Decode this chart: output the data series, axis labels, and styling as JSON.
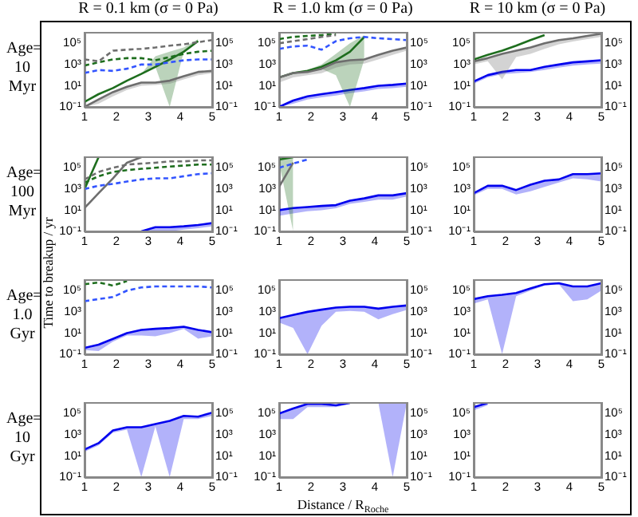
{
  "chart_data": [
    {
      "type": "line",
      "title": "R = 0.1 km (σ = 0 Pa)",
      "annotations": [
        "Age= 10 Myr"
      ],
      "x": [
        1,
        1.44,
        1.89,
        2.33,
        2.78,
        3.22,
        3.67,
        4.11,
        4.56,
        5
      ],
      "xlim": [
        1,
        5
      ],
      "xticks": [
        1,
        2,
        3,
        4,
        5
      ],
      "ylim": [
        0.1,
        1000000.0
      ],
      "yticks": [
        {
          "value": 0.1,
          "label": "10⁻¹"
        },
        {
          "value": 10,
          "label": "10¹"
        },
        {
          "value": 1000,
          "label": "10³"
        },
        {
          "value": 100000,
          "label": "10⁵"
        }
      ],
      "log": true,
      "series": [
        {
          "color": "#6e6e6e",
          "line_style": "dashed",
          "values": [
            3000.0,
            2000.0,
            20000.0,
            25000.0,
            30000.0,
            40000.0,
            60000.0,
            80000.0,
            130000.0,
            200000.0
          ]
        },
        {
          "color": "#1e6e1e",
          "line_style": "dashed",
          "values": [
            800,
            1600.0,
            3000.0,
            4000.0,
            4000.0,
            2500.0,
            5000.0,
            10000.0,
            16000.0,
            20000.0
          ]
        },
        {
          "color": "#3355ff",
          "line_style": "dashed",
          "values": [
            160,
            300,
            250,
            400,
            1000.0,
            1000.0,
            1600.0,
            2500.0,
            3000.0,
            3000.0
          ]
        },
        {
          "color": "#6e6e6e",
          "values": [
            0.1,
            0.5,
            2.5,
            8,
            20,
            20,
            30,
            80,
            200,
            250
          ],
          "lower": [
            0.1,
            0.2,
            1,
            4,
            10,
            12,
            15,
            40,
            100,
            150
          ],
          "upper": [
            0.1,
            0.5,
            2.5,
            8,
            20,
            20,
            30,
            80,
            200,
            250
          ]
        },
        {
          "color": "#1e6e1e",
          "values": [
            0.3,
            1.6,
            6,
            30,
            130,
            600,
            3000,
            16000.0,
            160000.0,
            null
          ],
          "lower": [
            0.3,
            1.6,
            6,
            30,
            130,
            600,
            0.1,
            16000.0,
            160000.0,
            null
          ],
          "upper": [
            0.3,
            1.6,
            6,
            30,
            130,
            6000.0,
            16000.0,
            40000.0,
            250000.0,
            null
          ]
        }
      ]
    },
    {
      "type": "line",
      "title": "R = 1.0 km (σ = 0 Pa)",
      "x": [
        1,
        1.44,
        1.89,
        2.33,
        2.78,
        3.22,
        3.67,
        4.11,
        4.56,
        5
      ],
      "xlim": [
        1,
        5
      ],
      "xticks": [
        1,
        2,
        3,
        4,
        5
      ],
      "ylim": [
        0.1,
        1000000.0
      ],
      "yticks": [
        {
          "value": 0.1,
          "label": "10⁻¹"
        },
        {
          "value": 10,
          "label": "10¹"
        },
        {
          "value": 1000,
          "label": "10³"
        },
        {
          "value": 100000,
          "label": "10⁵"
        }
      ],
      "log": true,
      "series": [
        {
          "color": "#6e6e6e",
          "line_style": "dashed",
          "values": [
            100000.0,
            160000.0,
            250000.0,
            400000.0,
            600000.0,
            null,
            null,
            null,
            null,
            null
          ]
        },
        {
          "color": "#1e6e1e",
          "line_style": "dashed",
          "values": [
            250000.0,
            400000.0,
            500000.0,
            600000.0,
            800000.0,
            null,
            null,
            null,
            null,
            null
          ]
        },
        {
          "color": "#3355ff",
          "line_style": "dashed",
          "values": [
            30000.0,
            50000.0,
            60000.0,
            25000.0,
            160000.0,
            300000.0,
            400000.0,
            300000.0,
            250000.0,
            200000.0
          ]
        },
        {
          "color": "#6e6e6e",
          "values": [
            60,
            160,
            200,
            400,
            1600.0,
            2500.0,
            3000.0,
            8000.0,
            20000.0,
            40000.0
          ],
          "lower": [
            20,
            60,
            100,
            150,
            500,
            1000.0,
            1200.0,
            3000.0,
            8000.0,
            20000.0
          ],
          "upper": [
            60,
            160,
            200,
            400,
            1600.0,
            2500.0,
            3000.0,
            8000.0,
            20000.0,
            40000.0
          ]
        },
        {
          "color": "#1e6e1e",
          "values": [
            60,
            160,
            250,
            600,
            2500.0,
            16000.0,
            400000.0,
            null,
            null,
            null
          ],
          "lower": [
            60,
            160,
            250,
            400,
            100,
            0.1,
            3000.0,
            null,
            null,
            null
          ],
          "upper": [
            60,
            160,
            300,
            1000.0,
            10000.0,
            100000.0,
            600000.0,
            null,
            null,
            null
          ]
        },
        {
          "color": "#0000ee",
          "values": [
            0.1,
            0.4,
            1,
            1.6,
            2.5,
            4,
            6,
            10,
            12,
            16
          ],
          "lower": [
            0.1,
            0.2,
            0.5,
            0.8,
            1.2,
            2,
            3,
            5,
            6,
            8
          ],
          "upper": [
            0.1,
            0.4,
            1,
            1.6,
            2.5,
            4,
            6,
            10,
            12,
            16
          ]
        }
      ]
    },
    {
      "type": "line",
      "title": "R = 10 km (σ = 0 Pa)",
      "x": [
        1,
        1.44,
        1.89,
        2.33,
        2.78,
        3.22,
        3.67,
        4.11,
        4.56,
        5
      ],
      "xlim": [
        1,
        5
      ],
      "xticks": [
        1,
        2,
        3,
        4,
        5
      ],
      "ylim": [
        0.1,
        1000000.0
      ],
      "yticks": [
        {
          "value": 0.1,
          "label": "10⁻¹"
        },
        {
          "value": 10,
          "label": "10¹"
        },
        {
          "value": 1000,
          "label": "10³"
        },
        {
          "value": 100000,
          "label": "10⁵"
        }
      ],
      "log": true,
      "series": [
        {
          "color": "#6e6e6e",
          "values": [
            2000.0,
            4000.0,
            10000.0,
            20000.0,
            40000.0,
            100000.0,
            200000.0,
            300000.0,
            500000.0,
            800000.0
          ],
          "lower": [
            1000.0,
            2000.0,
            40,
            5000.0,
            10000.0,
            30000.0,
            80000.0,
            150000.0,
            250000.0,
            400000.0
          ],
          "upper": [
            2000.0,
            4000.0,
            10000.0,
            20000.0,
            40000.0,
            100000.0,
            200000.0,
            300000.0,
            500000.0,
            800000.0
          ]
        },
        {
          "color": "#1e6e1e",
          "values": [
            3000.0,
            8000.0,
            20000.0,
            60000.0,
            200000.0,
            600000.0,
            null,
            null,
            null,
            null
          ]
        },
        {
          "color": "#0000ee",
          "values": [
            25,
            100,
            200,
            300,
            300,
            600,
            1000.0,
            1600.0,
            2000.0,
            2500.0
          ],
          "lower": [
            15,
            60,
            120,
            150,
            200,
            300,
            500,
            800,
            1000.0,
            1200.0
          ],
          "upper": [
            25,
            100,
            200,
            300,
            300,
            600,
            1000.0,
            1600.0,
            2000.0,
            2500.0
          ]
        }
      ]
    },
    {
      "type": "line",
      "annotations": [
        "Age= 100 Myr"
      ],
      "ylabel": "Time to breakup / yr",
      "x": [
        1,
        1.44,
        1.89,
        2.33,
        2.78,
        3.22,
        3.67,
        4.11,
        4.56,
        5
      ],
      "xlim": [
        1,
        5
      ],
      "xticks": [
        1,
        2,
        3,
        4,
        5
      ],
      "ylim": [
        0.1,
        1000000.0
      ],
      "yticks": [
        {
          "value": 0.1,
          "label": "10⁻¹"
        },
        {
          "value": 10,
          "label": "10¹"
        },
        {
          "value": 1000,
          "label": "10³"
        },
        {
          "value": 100000,
          "label": "10⁵"
        }
      ],
      "log": true,
      "series": [
        {
          "color": "#6e6e6e",
          "line_style": "dashed",
          "values": [
            8000.0,
            40000.0,
            100000.0,
            200000.0,
            250000.0,
            300000.0,
            400000.0,
            400000.0,
            500000.0,
            500000.0
          ]
        },
        {
          "color": "#1e6e1e",
          "line_style": "dashed",
          "values": [
            4000.0,
            16000.0,
            40000.0,
            60000.0,
            80000.0,
            100000.0,
            130000.0,
            160000.0,
            200000.0,
            200000.0
          ]
        },
        {
          "color": "#3355ff",
          "line_style": "dashed",
          "values": [
            1000.0,
            2000.0,
            3000.0,
            5000.0,
            8000.0,
            10000.0,
            10000.0,
            16000.0,
            25000.0,
            30000.0
          ]
        },
        {
          "color": "#6e6e6e",
          "values": [
            16,
            400,
            10000.0,
            300000.0,
            1000000.0,
            null,
            null,
            null,
            null,
            null
          ]
        },
        {
          "color": "#1e6e1e",
          "values": [
            1000.0,
            1000000.0,
            null,
            null,
            null,
            null,
            null,
            null,
            null,
            null
          ]
        },
        {
          "color": "#0000ee",
          "values": [
            null,
            null,
            null,
            null,
            0.1,
            0.25,
            0.25,
            0.3,
            0.4,
            0.6
          ],
          "lower": [
            null,
            null,
            null,
            null,
            0.1,
            0.1,
            0.1,
            0.15,
            0.2,
            0.3
          ],
          "upper": [
            null,
            null,
            null,
            null,
            0.1,
            0.25,
            0.25,
            0.3,
            0.4,
            0.6
          ]
        }
      ]
    },
    {
      "type": "line",
      "x": [
        1,
        1.44,
        1.89,
        2.33,
        2.78,
        3.22,
        3.67,
        4.11,
        4.56,
        5
      ],
      "xlim": [
        1,
        5
      ],
      "xticks": [
        1,
        2,
        3,
        4,
        5
      ],
      "ylim": [
        0.1,
        1000000.0
      ],
      "yticks": [
        {
          "value": 0.1,
          "label": "10⁻¹"
        },
        {
          "value": 10,
          "label": "10¹"
        },
        {
          "value": 1000,
          "label": "10³"
        },
        {
          "value": 100000,
          "label": "10⁵"
        }
      ],
      "log": true,
      "series": [
        {
          "color": "#3355ff",
          "line_style": "dashed",
          "values": [
            100000.0,
            250000.0,
            600000.0,
            null,
            null,
            null,
            null,
            null,
            null,
            null
          ]
        },
        {
          "color": "#6e6e6e",
          "values": [
            1600.0,
            300000.0,
            null,
            null,
            null,
            null,
            null,
            null,
            null,
            null
          ]
        },
        {
          "color": "#1e6e1e",
          "values": [
            600000.0,
            1000000.0,
            null,
            null,
            null,
            null,
            null,
            null,
            null,
            null
          ],
          "lower": [
            300000.0,
            0.1,
            null,
            null,
            null,
            null,
            null,
            null,
            null,
            null
          ],
          "upper": [
            1000000.0,
            1000000.0,
            null,
            null,
            null,
            null,
            null,
            null,
            null,
            null
          ]
        },
        {
          "color": "#0000ee",
          "values": [
            10,
            16,
            20,
            25,
            30,
            80,
            130,
            250,
            250,
            400
          ],
          "lower": [
            3,
            5,
            8,
            10,
            15,
            40,
            60,
            100,
            100,
            200
          ],
          "upper": [
            10,
            16,
            20,
            25,
            30,
            80,
            130,
            250,
            250,
            400
          ]
        }
      ]
    },
    {
      "type": "line",
      "x": [
        1,
        1.44,
        1.89,
        2.33,
        2.78,
        3.22,
        3.67,
        4.11,
        4.56,
        5
      ],
      "xlim": [
        1,
        5
      ],
      "xticks": [
        1,
        2,
        3,
        4,
        5
      ],
      "ylim": [
        0.1,
        1000000.0
      ],
      "yticks": [
        {
          "value": 0.1,
          "label": "10⁻¹"
        },
        {
          "value": 10,
          "label": "10¹"
        },
        {
          "value": 1000,
          "label": "10³"
        },
        {
          "value": 100000,
          "label": "10⁵"
        }
      ],
      "log": true,
      "series": [
        {
          "color": "#0000ee",
          "values": [
            400,
            2000.0,
            2000.0,
            800,
            2500.0,
            6000.0,
            8000.0,
            25000.0,
            25000.0,
            30000.0
          ],
          "lower": [
            250,
            1000.0,
            1000.0,
            300,
            600,
            1600.0,
            4000.0,
            10000.0,
            8000.0,
            5000.0
          ],
          "upper": [
            400,
            2000.0,
            2000.0,
            800,
            2500.0,
            6000.0,
            8000.0,
            25000.0,
            25000.0,
            30000.0
          ]
        }
      ]
    },
    {
      "type": "line",
      "annotations": [
        "Age= 1.0 Gyr"
      ],
      "x": [
        1,
        1.44,
        1.89,
        2.33,
        2.78,
        3.22,
        3.67,
        4.11,
        4.56,
        5
      ],
      "xlim": [
        1,
        5
      ],
      "xticks": [
        1,
        2,
        3,
        4,
        5
      ],
      "ylim": [
        0.1,
        1000000.0
      ],
      "yticks": [
        {
          "value": 0.1,
          "label": "10⁻¹"
        },
        {
          "value": 10,
          "label": "10¹"
        },
        {
          "value": 1000,
          "label": "10³"
        },
        {
          "value": 100000,
          "label": "10⁵"
        }
      ],
      "log": true,
      "series": [
        {
          "color": "#1e6e1e",
          "line_style": "dashed",
          "values": [
            400000.0,
            600000.0,
            300000.0,
            800000.0,
            null,
            null,
            null,
            null,
            null,
            null
          ]
        },
        {
          "color": "#3355ff",
          "line_style": "dashed",
          "values": [
            10000.0,
            16000.0,
            25000.0,
            100000.0,
            200000.0,
            250000.0,
            250000.0,
            250000.0,
            250000.0,
            200000.0
          ]
        },
        {
          "color": "#0000ee",
          "values": [
            0.4,
            0.8,
            2.8,
            10,
            20,
            25,
            30,
            40,
            20,
            12
          ],
          "lower": [
            0.25,
            0.2,
            1.5,
            6,
            6,
            5,
            10,
            25,
            3,
            5
          ],
          "upper": [
            0.4,
            0.8,
            2.8,
            10,
            20,
            25,
            30,
            40,
            20,
            12
          ]
        }
      ]
    },
    {
      "type": "line",
      "x": [
        1,
        1.44,
        1.89,
        2.33,
        2.78,
        3.22,
        3.67,
        4.11,
        4.56,
        5
      ],
      "xlim": [
        1,
        5
      ],
      "xticks": [
        1,
        2,
        3,
        4,
        5
      ],
      "ylim": [
        0.1,
        1000000.0
      ],
      "yticks": [
        {
          "value": 0.1,
          "label": "10⁻¹"
        },
        {
          "value": 10,
          "label": "10¹"
        },
        {
          "value": 1000,
          "label": "10³"
        },
        {
          "value": 100000,
          "label": "10⁵"
        }
      ],
      "log": true,
      "series": [
        {
          "color": "#0000ee",
          "values": [
            250,
            500,
            1000.0,
            1600.0,
            2500.0,
            3000.0,
            3000.0,
            2000.0,
            3000.0,
            4000.0
          ],
          "lower": [
            100,
            30,
            0.1,
            50,
            1000.0,
            1200.0,
            1000.0,
            200,
            600,
            1500.0
          ],
          "upper": [
            250,
            500,
            1000.0,
            1600.0,
            2500.0,
            3000.0,
            3000.0,
            2000.0,
            3000.0,
            4000.0
          ]
        }
      ]
    },
    {
      "type": "line",
      "x": [
        1,
        1.44,
        1.89,
        2.33,
        2.78,
        3.22,
        3.67,
        4.11,
        4.56,
        5
      ],
      "xlim": [
        1,
        5
      ],
      "xticks": [
        1,
        2,
        3,
        4,
        5
      ],
      "ylim": [
        0.1,
        1000000.0
      ],
      "yticks": [
        {
          "value": 0.1,
          "label": "10⁻¹"
        },
        {
          "value": 10,
          "label": "10¹"
        },
        {
          "value": 1000,
          "label": "10³"
        },
        {
          "value": 100000,
          "label": "10⁵"
        }
      ],
      "log": true,
      "series": [
        {
          "color": "#0000ee",
          "values": [
            16000.0,
            30000.0,
            40000.0,
            60000.0,
            160000.0,
            400000.0,
            500000.0,
            250000.0,
            250000.0,
            500000.0
          ],
          "lower": [
            6000.0,
            15000.0,
            0.1,
            30000.0,
            100000.0,
            300000.0,
            400000.0,
            10000.0,
            15000.0,
            100000.0
          ],
          "upper": [
            16000.0,
            30000.0,
            40000.0,
            60000.0,
            160000.0,
            400000.0,
            500000.0,
            250000.0,
            250000.0,
            500000.0
          ]
        }
      ]
    },
    {
      "type": "line",
      "annotations": [
        "Age= 10 Gyr"
      ],
      "x": [
        1,
        1.44,
        1.89,
        2.33,
        2.78,
        3.22,
        3.67,
        4.11,
        4.56,
        5
      ],
      "xlim": [
        1,
        5
      ],
      "xticks": [
        1,
        2,
        3,
        4,
        5
      ],
      "ylim": [
        0.1,
        1000000.0
      ],
      "yticks": [
        {
          "value": 0.1,
          "label": "10⁻¹"
        },
        {
          "value": 10,
          "label": "10¹"
        },
        {
          "value": 1000,
          "label": "10³"
        },
        {
          "value": 100000,
          "label": "10⁵"
        }
      ],
      "log": true,
      "series": [
        {
          "color": "#0000ee",
          "values": [
            40,
            160,
            2500.0,
            5000.0,
            5000.0,
            10000.0,
            20000.0,
            60000.0,
            50000.0,
            120000.0
          ],
          "lower": [
            25,
            100,
            1600.0,
            3000.0,
            0.1,
            6000.0,
            0.1,
            30000.0,
            30000.0,
            60000.0
          ],
          "upper": [
            40,
            160,
            2500.0,
            5000.0,
            5000.0,
            10000.0,
            20000.0,
            60000.0,
            50000.0,
            120000.0
          ]
        }
      ]
    },
    {
      "type": "line",
      "xlabel": "Distance / R$_{Roche}$",
      "x": [
        1,
        1.44,
        1.89,
        2.33,
        2.78,
        3.22,
        3.67,
        4.11,
        4.56,
        5
      ],
      "xlim": [
        1,
        5
      ],
      "xticks": [
        1,
        2,
        3,
        4,
        5
      ],
      "ylim": [
        0.1,
        1000000.0
      ],
      "yticks": [
        {
          "value": 0.1,
          "label": "10⁻¹"
        },
        {
          "value": 10,
          "label": "10¹"
        },
        {
          "value": 1000,
          "label": "10³"
        },
        {
          "value": 100000,
          "label": "10⁵"
        }
      ],
      "log": true,
      "series": [
        {
          "color": "#0000ee",
          "values": [
            100000.0,
            300000.0,
            800000.0,
            800000.0,
            600000.0,
            1000000.0,
            null,
            null,
            null,
            null
          ],
          "lower": [
            30000.0,
            30000.0,
            400000.0,
            400000.0,
            400000.0,
            800000.0,
            null,
            1000000.0,
            0.1,
            1000000.0
          ],
          "upper": [
            100000.0,
            300000.0,
            800000.0,
            800000.0,
            600000.0,
            1000000.0,
            null,
            1000000.0,
            1000000.0,
            1000000.0
          ]
        }
      ]
    },
    {
      "type": "line",
      "xlim": [
        1,
        5
      ],
      "xticks": [
        1,
        2,
        3,
        4,
        5
      ],
      "ylim": [
        0.1,
        1000000.0
      ],
      "yticks": [
        {
          "value": 0.1,
          "label": "10⁻¹"
        },
        {
          "value": 10,
          "label": "10¹"
        },
        {
          "value": 1000,
          "label": "10³"
        },
        {
          "value": 100000,
          "label": "10⁵"
        }
      ],
      "log": true,
      "series": [
        {
          "color": "#0000ee",
          "x": [
            1,
            1.44
          ],
          "values": [
            400000.0,
            1000000.0
          ],
          "lower": [
            200000.0,
            600000.0
          ],
          "upper": [
            400000.0,
            1000000.0
          ]
        }
      ]
    }
  ]
}
